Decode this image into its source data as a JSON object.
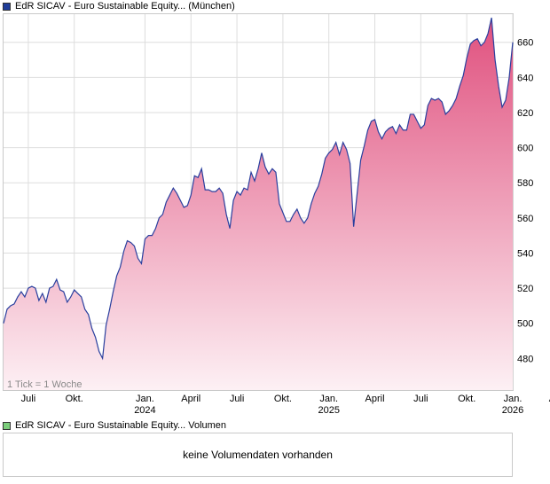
{
  "legend": {
    "price_label": "EdR SICAV - Euro Sustainable Equity... (München)",
    "price_color": "#1f3d99",
    "volume_label": "EdR SICAV - Euro Sustainable Equity... Volumen",
    "volume_color": "#7ccf7c"
  },
  "tick_note": "1 Tick = 1 Woche",
  "volume_message": "keine Volumendaten vorhanden",
  "colors": {
    "line": "#2a3f9e",
    "fill_top": "#e0507e",
    "fill_bottom": "#fdf0f4",
    "grid": "#dddddd"
  },
  "chart_data": {
    "type": "area",
    "title": "",
    "xlabel": "",
    "ylabel": "",
    "ylim": [
      462,
      676
    ],
    "y_ticks": [
      480,
      500,
      520,
      540,
      560,
      580,
      600,
      620,
      640,
      660
    ],
    "x_ticks": [
      {
        "label": "Juli",
        "year": "",
        "week": 7
      },
      {
        "label": "Okt.",
        "year": "",
        "week": 20
      },
      {
        "label": "Jan.",
        "year": "2024",
        "week": 40
      },
      {
        "label": "April",
        "year": "",
        "week": 53
      },
      {
        "label": "Juli",
        "year": "",
        "week": 66
      },
      {
        "label": "Okt.",
        "year": "",
        "week": 79
      },
      {
        "label": "Jan.",
        "year": "2025",
        "week": 92
      },
      {
        "label": "April",
        "year": "",
        "week": 105
      },
      {
        "label": "Juli",
        "year": "",
        "week": 118
      },
      {
        "label": "Okt.",
        "year": "",
        "week": 131
      },
      {
        "label": "Jan.",
        "year": "2026",
        "week": 144
      },
      {
        "label": "April",
        "year": "",
        "week": 157
      }
    ],
    "grid": true,
    "series": [
      {
        "values": [
          500,
          508,
          510,
          511,
          515,
          518,
          515,
          520,
          521,
          520,
          513,
          517,
          512,
          520,
          521,
          525,
          519,
          518,
          512,
          515,
          519,
          517,
          515,
          508,
          505,
          497,
          492,
          484,
          480,
          499,
          508,
          518,
          527,
          532,
          541,
          547,
          546,
          544,
          537,
          534,
          548,
          550,
          550,
          554,
          560,
          562,
          569,
          573,
          577,
          574,
          570,
          566,
          567,
          573,
          584,
          583,
          588,
          576,
          576,
          575,
          575,
          577,
          574,
          562,
          554,
          570,
          575,
          573,
          577,
          576,
          586,
          581,
          588,
          597,
          589,
          585,
          588,
          586,
          568,
          563,
          558,
          558,
          562,
          565,
          560,
          557,
          560,
          568,
          574,
          578,
          585,
          594,
          597,
          599,
          603,
          596,
          603,
          599,
          591,
          555,
          574,
          593,
          601,
          610,
          615,
          616,
          609,
          605,
          609,
          611,
          612,
          608,
          613,
          610,
          610,
          619,
          619,
          615,
          611,
          613,
          624,
          628,
          627,
          628,
          626,
          619,
          621,
          624,
          628,
          635,
          641,
          651,
          659,
          661,
          662,
          658,
          660,
          665,
          674,
          650,
          635,
          623,
          627,
          640,
          660
        ]
      }
    ]
  }
}
